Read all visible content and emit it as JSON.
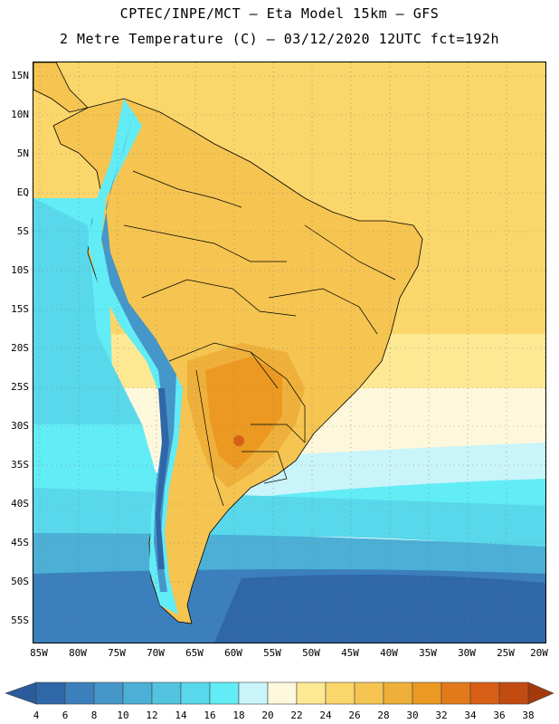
{
  "header": {
    "line1": "CPTEC/INPE/MCT –  Eta Model 15km – GFS",
    "line2": "2 Metre Temperature (C) – 03/12/2020 12UTC fct=192h"
  },
  "axes": {
    "lat_labels": [
      "15N",
      "10N",
      "5N",
      "EQ",
      "5S",
      "10S",
      "15S",
      "20S",
      "25S",
      "30S",
      "35S",
      "40S",
      "45S",
      "50S",
      "55S"
    ],
    "lon_labels": [
      "85W",
      "80W",
      "75W",
      "70W",
      "65W",
      "60W",
      "55W",
      "50W",
      "45W",
      "40W",
      "35W",
      "30W",
      "25W",
      "20W"
    ],
    "lat_range": [
      17,
      -57
    ],
    "lon_range": [
      -86,
      -20
    ],
    "grid": "dotted"
  },
  "colorbar": {
    "ticks": [
      "4",
      "6",
      "8",
      "10",
      "12",
      "14",
      "16",
      "18",
      "20",
      "22",
      "24",
      "26",
      "28",
      "30",
      "32",
      "34",
      "36",
      "38"
    ],
    "under_color": "#2a5b9a",
    "over_color": "#a43a0c",
    "colors": [
      "#2f67a9",
      "#3b7fbc",
      "#4596c9",
      "#4bafd6",
      "#52c4e0",
      "#58d8ea",
      "#62ecf6",
      "#c9f4fa",
      "#fdf7dc",
      "#fde994",
      "#fbd66a",
      "#f5c451",
      "#eeb03a",
      "#eb9921",
      "#e27a1c",
      "#d75f16",
      "#c34a10"
    ]
  },
  "map": {
    "ocean_colors": {
      "cold_deep": "#2f67a9",
      "cold": "#3b7fbc",
      "mid": "#4bafd6",
      "light": "#58d8ea",
      "cyan": "#62ecf6",
      "pale": "#c9f4fa",
      "cream": "#fdf7dc",
      "warm": "#fde994",
      "warmer": "#fbd66a"
    },
    "land_colors": {
      "tropics": "#f5c451",
      "hot": "#eeb03a",
      "hotter": "#eb9921",
      "hottest": "#d75f16",
      "andes_peak": "#2f67a9",
      "andes_mid": "#4596c9",
      "andes_light": "#62ecf6"
    }
  }
}
